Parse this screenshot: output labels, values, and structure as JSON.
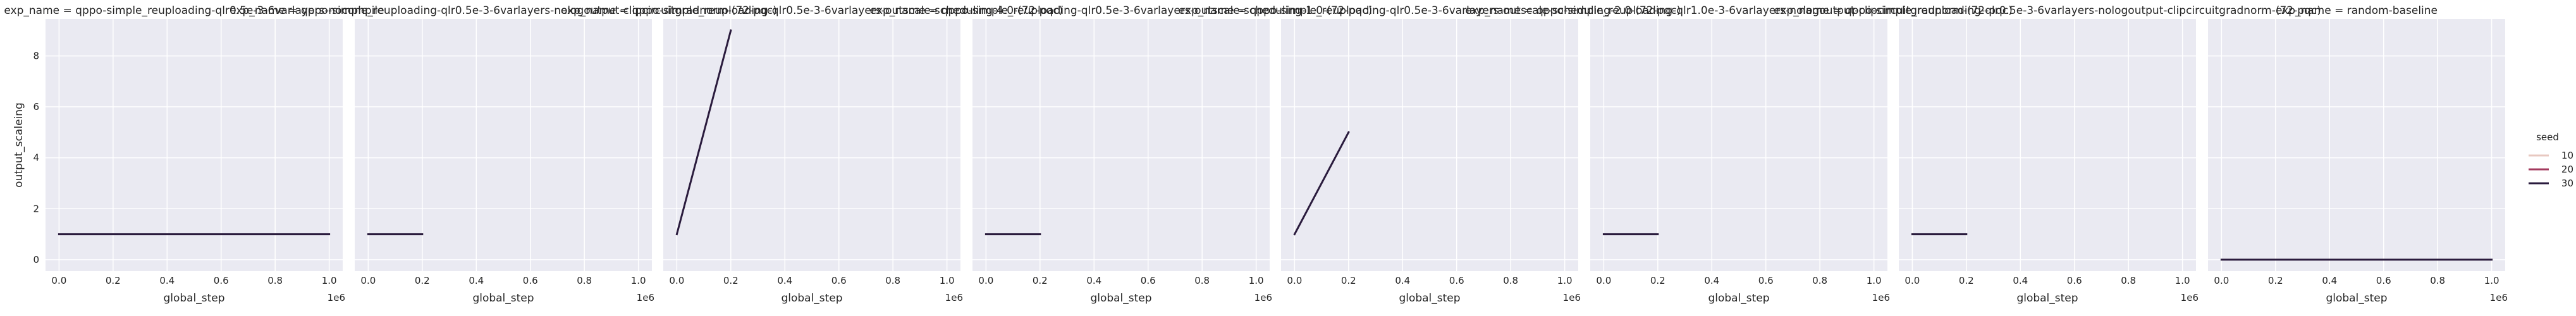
{
  "chart_data": {
    "type": "line",
    "facet_titles": [
      "exp_name = qppo-simple_reuploading-qlr0.5e-3-6varlayers-nocompile",
      "exp_name = qppo-simple_reuploading-qlr0.5e-3-6varlayers-nologoutput-clipcircuitgradnorm-(72-pqc)",
      "exp_name = qppo-simple_reuploading-qlr0.5e-3-6varlayers-outscale-scheduling-4.0-(72-pqc)",
      "exp_name = qppo-simple_reuploading-qlr0.5e-3-6varlayers-outscale-scheduling-1.0-(72-pqc)",
      "exp_name = qppo-simple_reuploading-qlr0.5e-3-6varlayers-outscale-scheduling-2.0-(72-pqc)",
      "exp_name = qppo-simple_reuploading-qlr1.0e-3-6varlayers-nologoutput-clipcircuitgradnorm-(72-pqc)",
      "exp_name = qppo-simple_reuploading-qlr0.5e-3-6varlayers-nologoutput-clipcircuitgradnorm-(72-pqc)",
      "exp_name = random-baseline"
    ],
    "xlabel": "global_step",
    "ylabel": "output_scaleing",
    "x_offset_label": "1e6",
    "x_ticks": [
      0.0,
      0.2,
      0.4,
      0.6,
      0.8,
      1.0
    ],
    "x_tick_labels": [
      "0.0",
      "0.2",
      "0.4",
      "0.6",
      "0.8",
      "1.0"
    ],
    "xlim": [
      -0.05,
      1.05
    ],
    "y_ticks": [
      0,
      2,
      4,
      6,
      8
    ],
    "y_tick_labels": [
      "0",
      "2",
      "4",
      "6",
      "8"
    ],
    "ylim": [
      -0.45,
      9.45
    ],
    "grid": true,
    "legend": {
      "title": "seed",
      "placement": "right",
      "entries": [
        {
          "label": "10",
          "color": "#e8c8c0"
        },
        {
          "label": "20",
          "color": "#a33a5e"
        },
        {
          "label": "30",
          "color": "#2a1b3d"
        }
      ]
    },
    "panels": [
      {
        "series": [
          {
            "seed": "30",
            "x": [
              0.0,
              1.0
            ],
            "y": [
              1,
              1
            ]
          }
        ]
      },
      {
        "series": [
          {
            "seed": "30",
            "x": [
              0.0,
              0.2
            ],
            "y": [
              1,
              1
            ]
          }
        ]
      },
      {
        "series": [
          {
            "seed": "30",
            "x": [
              0.0,
              0.2
            ],
            "y": [
              1,
              9
            ]
          }
        ]
      },
      {
        "series": [
          {
            "seed": "30",
            "x": [
              0.0,
              0.2
            ],
            "y": [
              1,
              1
            ]
          }
        ]
      },
      {
        "series": [
          {
            "seed": "30",
            "x": [
              0.0,
              0.2
            ],
            "y": [
              1,
              5
            ]
          }
        ]
      },
      {
        "series": [
          {
            "seed": "30",
            "x": [
              0.0,
              0.2
            ],
            "y": [
              1,
              1
            ]
          }
        ]
      },
      {
        "series": [
          {
            "seed": "30",
            "x": [
              0.0,
              0.2
            ],
            "y": [
              1,
              1
            ]
          }
        ]
      },
      {
        "series": [
          {
            "seed": "30",
            "x": [
              0.0,
              1.0
            ],
            "y": [
              0,
              0
            ]
          }
        ]
      }
    ]
  }
}
